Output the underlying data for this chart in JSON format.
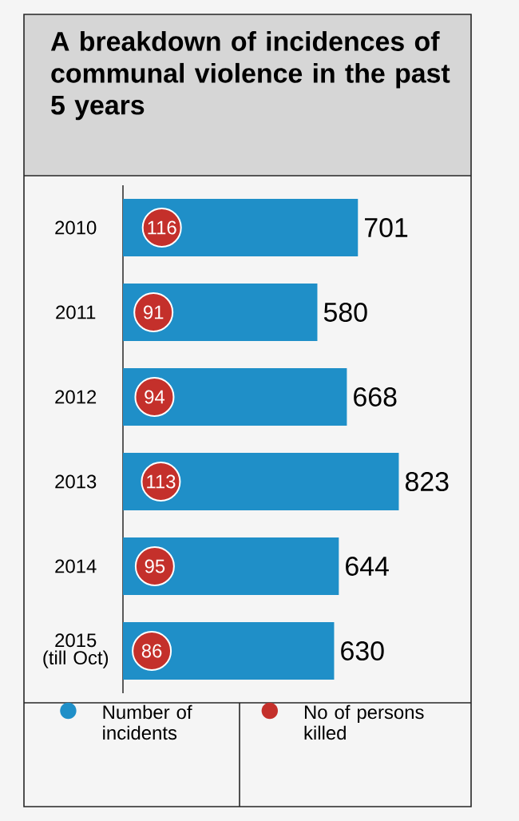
{
  "chart_data": {
    "type": "bar",
    "orientation": "horizontal",
    "title": "A breakdown of incidences of communal violence in the past 5 years",
    "categories": [
      "2010",
      "2011",
      "2012",
      "2013",
      "2014",
      "2015 (till Oct)"
    ],
    "series": [
      {
        "name": "Number of incidents",
        "color": "#1f8fc8",
        "values": [
          701,
          580,
          668,
          823,
          644,
          630
        ]
      },
      {
        "name": "No of persons killed",
        "type": "scatter",
        "marker": "circle",
        "color": "#c4302b",
        "values": [
          116,
          91,
          94,
          113,
          95,
          86
        ]
      }
    ],
    "tick_labels": "y",
    "data_labels": true,
    "legend": "bottom"
  }
}
